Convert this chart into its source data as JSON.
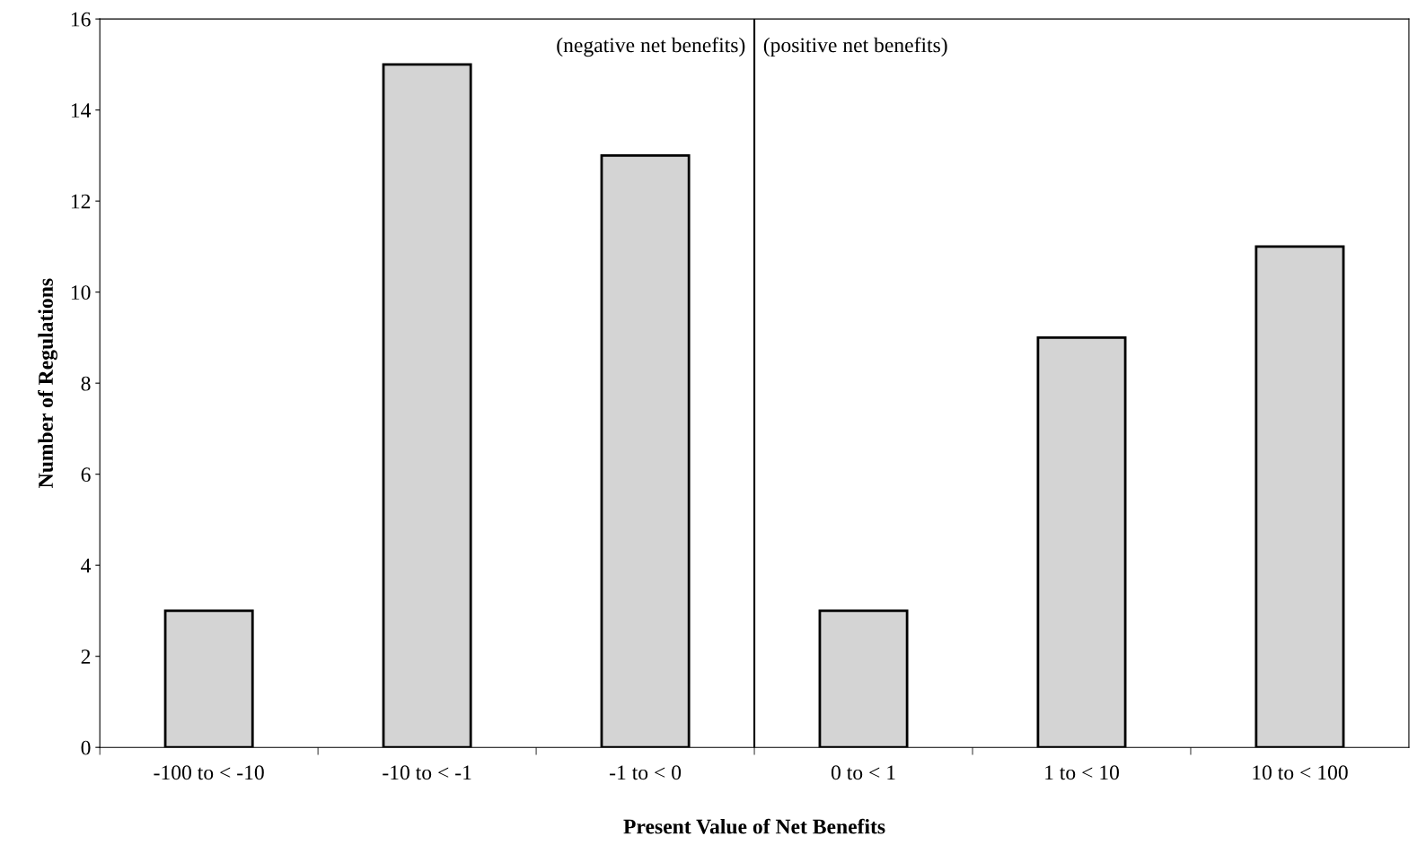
{
  "chart_data": {
    "type": "bar",
    "xlabel": "Present Value of Net Benefits",
    "ylabel": "Number of Regulations",
    "categories": [
      "-100 to < -10",
      "-10 to < -1",
      "-1 to < 0",
      "0 to < 1",
      "1 to < 10",
      "10 to < 100"
    ],
    "values": [
      3,
      15,
      13,
      3,
      9,
      11
    ],
    "color": "#d4d4d4",
    "ylim": [
      0,
      16
    ],
    "yticks": [
      0,
      2,
      4,
      6,
      8,
      10,
      12,
      14,
      16
    ],
    "grid": false,
    "annotations": [
      "(negative net benefits)",
      "(positive net benefits)"
    ]
  }
}
